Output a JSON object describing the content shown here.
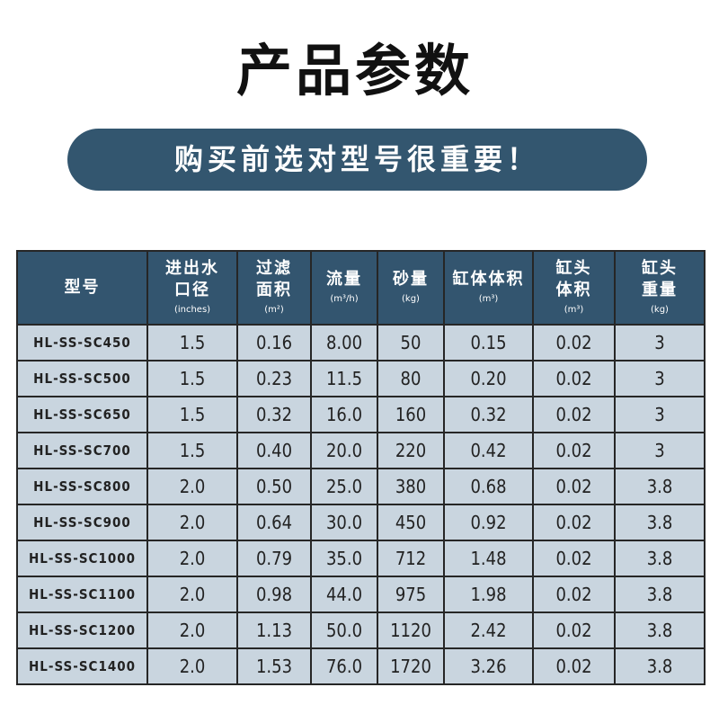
{
  "title": "产品参数",
  "banner": "购买前选对型号很重要！",
  "table": {
    "headers": [
      {
        "label": "型号",
        "unit": ""
      },
      {
        "label": "进出水口径",
        "unit": "(inches)"
      },
      {
        "label": "过滤面积",
        "unit": "(m²)"
      },
      {
        "label": "流量",
        "unit": "(m³/h)"
      },
      {
        "label": "砂量",
        "unit": "(kg)"
      },
      {
        "label": "缸体体积",
        "unit": "(m³)"
      },
      {
        "label": "缸头体积",
        "unit": "(m³)"
      },
      {
        "label": "缸头重量",
        "unit": "(kg)"
      }
    ],
    "rows": [
      [
        "HL-SS-SC450",
        "1.5",
        "0.16",
        "8.00",
        "50",
        "0.15",
        "0.02",
        "3"
      ],
      [
        "HL-SS-SC500",
        "1.5",
        "0.23",
        "11.5",
        "80",
        "0.20",
        "0.02",
        "3"
      ],
      [
        "HL-SS-SC650",
        "1.5",
        "0.32",
        "16.0",
        "160",
        "0.32",
        "0.02",
        "3"
      ],
      [
        "HL-SS-SC700",
        "1.5",
        "0.40",
        "20.0",
        "220",
        "0.42",
        "0.02",
        "3"
      ],
      [
        "HL-SS-SC800",
        "2.0",
        "0.50",
        "25.0",
        "380",
        "0.68",
        "0.02",
        "3.8"
      ],
      [
        "HL-SS-SC900",
        "2.0",
        "0.64",
        "30.0",
        "450",
        "0.92",
        "0.02",
        "3.8"
      ],
      [
        "HL-SS-SC1000",
        "2.0",
        "0.79",
        "35.0",
        "712",
        "1.48",
        "0.02",
        "3.8"
      ],
      [
        "HL-SS-SC1100",
        "2.0",
        "0.98",
        "44.0",
        "975",
        "1.98",
        "0.02",
        "3.8"
      ],
      [
        "HL-SS-SC1200",
        "2.0",
        "1.13",
        "50.0",
        "1120",
        "2.42",
        "0.02",
        "3.8"
      ],
      [
        "HL-SS-SC1400",
        "2.0",
        "1.53",
        "76.0",
        "1720",
        "3.26",
        "0.02",
        "3.8"
      ]
    ]
  }
}
